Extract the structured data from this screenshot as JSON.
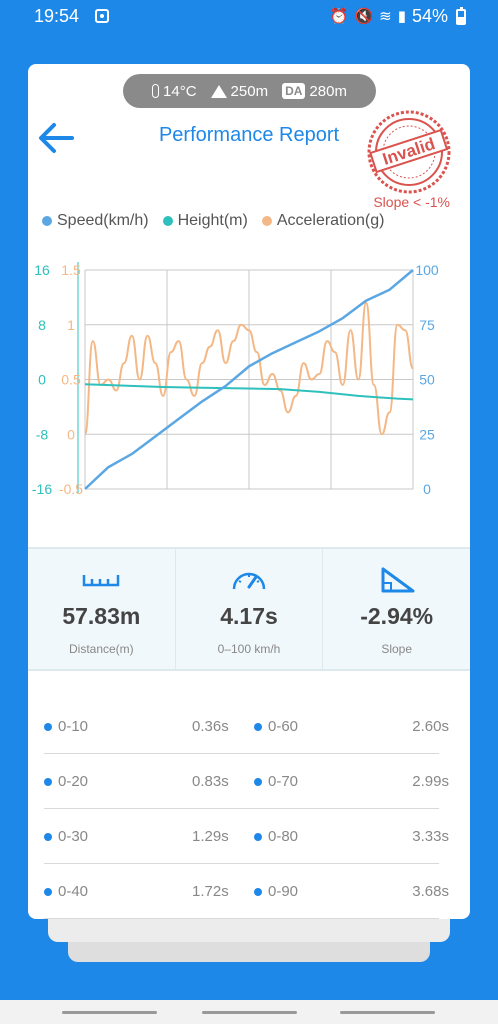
{
  "status": {
    "time": "19:54",
    "battery": "54%"
  },
  "weather": {
    "temp": "14°C",
    "altitude": "250m",
    "da_badge": "DA",
    "density_altitude": "280m"
  },
  "header": {
    "title": "Performance Report",
    "stamp_text": "Invalid",
    "slope_warning": "Slope < -1%"
  },
  "legend": [
    {
      "label": "Speed(km/h)",
      "color": "#5aa7e3"
    },
    {
      "label": "Height(m)",
      "color": "#2ec0bc"
    },
    {
      "label": "Acceleration(g)",
      "color": "#f4b886"
    }
  ],
  "chart_data": {
    "type": "line",
    "x_range": [
      0,
      4.2
    ],
    "series": [
      {
        "name": "Speed(km/h)",
        "color": "#5aa7e3",
        "axis": "right",
        "ylim": [
          0,
          100
        ],
        "x": [
          0,
          0.3,
          0.6,
          0.9,
          1.2,
          1.5,
          1.8,
          2.1,
          2.4,
          2.7,
          3.0,
          3.3,
          3.6,
          3.9,
          4.2
        ],
        "y": [
          0,
          10,
          16,
          24,
          32,
          40,
          47,
          56,
          62,
          67,
          72,
          78,
          86,
          91,
          100
        ]
      },
      {
        "name": "Height(m)",
        "color": "#2ec0bc",
        "axis": "left1",
        "ylim": [
          -16,
          16
        ],
        "x": [
          0,
          0.5,
          1.0,
          1.5,
          2.0,
          2.5,
          3.0,
          3.5,
          4.0,
          4.2
        ],
        "y": [
          -0.7,
          -0.9,
          -1.1,
          -1.2,
          -1.3,
          -1.4,
          -1.8,
          -2.4,
          -2.8,
          -2.9
        ]
      },
      {
        "name": "Acceleration(g)",
        "color": "#f4b886",
        "axis": "left2",
        "ylim": [
          -0.5,
          1.5
        ],
        "x": [
          0,
          0.1,
          0.2,
          0.3,
          0.4,
          0.5,
          0.6,
          0.7,
          0.8,
          0.9,
          1.0,
          1.1,
          1.2,
          1.3,
          1.4,
          1.5,
          1.6,
          1.7,
          1.8,
          1.9,
          2.0,
          2.1,
          2.2,
          2.3,
          2.4,
          2.5,
          2.6,
          2.7,
          2.8,
          2.9,
          3.0,
          3.1,
          3.2,
          3.3,
          3.4,
          3.5,
          3.6,
          3.7,
          3.8,
          3.9,
          4.0,
          4.1,
          4.2
        ],
        "y": [
          0,
          0.85,
          0.45,
          0.5,
          0.4,
          0.65,
          0.9,
          0.5,
          0.9,
          0.65,
          0.35,
          0.75,
          0.85,
          0.5,
          0.35,
          0.65,
          0.8,
          0.95,
          0.65,
          0.85,
          1.0,
          0.95,
          0.75,
          0.45,
          0.55,
          0.4,
          0.2,
          0.35,
          0.65,
          0.5,
          0.55,
          0.85,
          0.75,
          0.45,
          0.95,
          0.5,
          1.2,
          0.45,
          0.0,
          0.2,
          1.0,
          0.95,
          0.6
        ]
      }
    ],
    "left1_ticks": [
      "16",
      "8",
      "0",
      "-8",
      "-16"
    ],
    "left2_ticks": [
      "1.5",
      "1",
      "0.5",
      "0",
      "-0.5"
    ],
    "right_ticks": [
      "100",
      "75",
      "50",
      "25",
      "0"
    ],
    "grid": true
  },
  "stats": [
    {
      "value": "57.83m",
      "label": "Distance(m)",
      "icon": "ruler-icon"
    },
    {
      "value": "4.17s",
      "label": "0–100 km/h",
      "icon": "speedometer-icon"
    },
    {
      "value": "-2.94%",
      "label": "Slope",
      "icon": "slope-icon"
    }
  ],
  "splits": [
    {
      "a_label": "0-10",
      "a_time": "0.36s",
      "b_label": "0-60",
      "b_time": "2.60s"
    },
    {
      "a_label": "0-20",
      "a_time": "0.83s",
      "b_label": "0-70",
      "b_time": "2.99s"
    },
    {
      "a_label": "0-30",
      "a_time": "1.29s",
      "b_label": "0-80",
      "b_time": "3.33s"
    },
    {
      "a_label": "0-40",
      "a_time": "1.72s",
      "b_label": "0-90",
      "b_time": "3.68s"
    }
  ]
}
